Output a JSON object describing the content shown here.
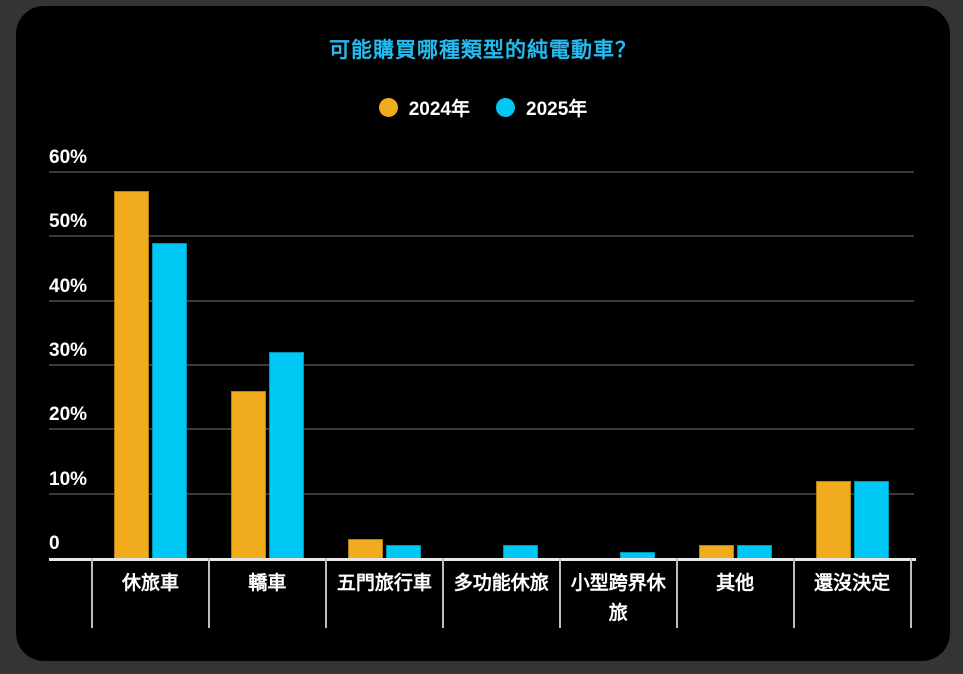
{
  "frame": {
    "background": "#343434",
    "panel_background": "#000000"
  },
  "title": {
    "text": "可能購買哪種類型的純電動車？",
    "color": "#24BAEF"
  },
  "legend": [
    {
      "label": "2024年",
      "color": "#F0AC1C"
    },
    {
      "label": "2025年",
      "color": "#00C8F5"
    }
  ],
  "chart_data": {
    "type": "bar",
    "title": "可能購買哪種類型的純電動車？",
    "categories": [
      "休旅車",
      "轎車",
      "五門旅行車",
      "多功能休旅",
      "小型跨界休旅",
      "其他",
      "還沒決定"
    ],
    "series": [
      {
        "name": "2024年",
        "color": "#F0AC1C",
        "values": [
          57,
          26,
          3,
          0,
          0,
          2,
          12
        ]
      },
      {
        "name": "2025年",
        "color": "#00C8F5",
        "values": [
          49,
          32,
          2,
          2,
          1,
          2,
          12
        ]
      }
    ],
    "xlabel": "",
    "ylabel": "",
    "ylim": [
      0,
      60
    ],
    "ytick_labels": [
      "0",
      "10%",
      "20%",
      "30%",
      "40%",
      "50%",
      "60%"
    ],
    "grid": true,
    "legend_position": "top",
    "colors": {
      "gridline": "#3A3A3A",
      "axis_line": "#E8E8E8",
      "tick_line": "#BDBDBD",
      "text": "#FFFFFF"
    }
  }
}
